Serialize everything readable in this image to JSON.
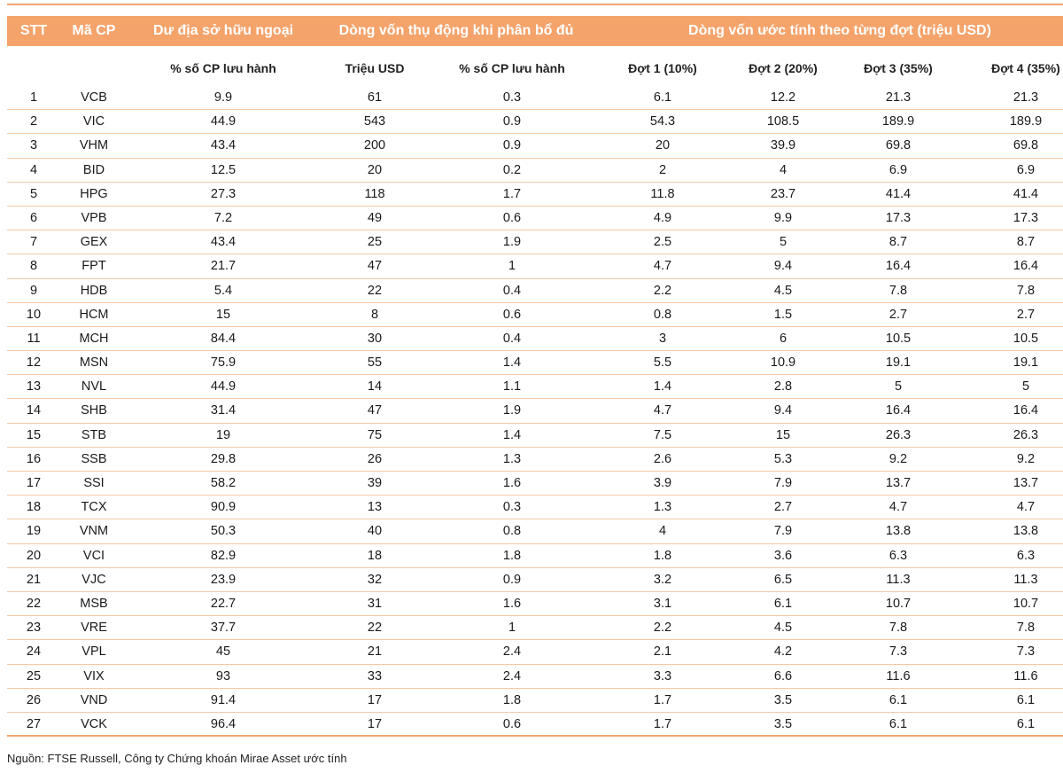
{
  "header": {
    "stt": "STT",
    "ma_cp": "Mã CP",
    "du_dia": "Dư địa sở hữu ngoại",
    "dong_von_thu_dong": "Dòng vốn thụ động khi phân bổ đủ",
    "dong_von_uoc_tinh": "Dòng vốn ước tính theo từng đợt (triệu USD)"
  },
  "subheader": {
    "du_dia_pct": "% số CP lưu hành",
    "trieu_usd": "Triệu USD",
    "pct_luu_hanh": "% số CP lưu hành",
    "dot1": "Đợt 1 (10%)",
    "dot2": "Đợt 2 (20%)",
    "dot3": "Đợt 3 (35%)",
    "dot4": "Đợt 4 (35%)"
  },
  "rows": [
    [
      "1",
      "VCB",
      "9.9",
      "61",
      "0.3",
      "6.1",
      "12.2",
      "21.3",
      "21.3"
    ],
    [
      "2",
      "VIC",
      "44.9",
      "543",
      "0.9",
      "54.3",
      "108.5",
      "189.9",
      "189.9"
    ],
    [
      "3",
      "VHM",
      "43.4",
      "200",
      "0.9",
      "20",
      "39.9",
      "69.8",
      "69.8"
    ],
    [
      "4",
      "BID",
      "12.5",
      "20",
      "0.2",
      "2",
      "4",
      "6.9",
      "6.9"
    ],
    [
      "5",
      "HPG",
      "27.3",
      "118",
      "1.7",
      "11.8",
      "23.7",
      "41.4",
      "41.4"
    ],
    [
      "6",
      "VPB",
      "7.2",
      "49",
      "0.6",
      "4.9",
      "9.9",
      "17.3",
      "17.3"
    ],
    [
      "7",
      "GEX",
      "43.4",
      "25",
      "1.9",
      "2.5",
      "5",
      "8.7",
      "8.7"
    ],
    [
      "8",
      "FPT",
      "21.7",
      "47",
      "1",
      "4.7",
      "9.4",
      "16.4",
      "16.4"
    ],
    [
      "9",
      "HDB",
      "5.4",
      "22",
      "0.4",
      "2.2",
      "4.5",
      "7.8",
      "7.8"
    ],
    [
      "10",
      "HCM",
      "15",
      "8",
      "0.6",
      "0.8",
      "1.5",
      "2.7",
      "2.7"
    ],
    [
      "11",
      "MCH",
      "84.4",
      "30",
      "0.4",
      "3",
      "6",
      "10.5",
      "10.5"
    ],
    [
      "12",
      "MSN",
      "75.9",
      "55",
      "1.4",
      "5.5",
      "10.9",
      "19.1",
      "19.1"
    ],
    [
      "13",
      "NVL",
      "44.9",
      "14",
      "1.1",
      "1.4",
      "2.8",
      "5",
      "5"
    ],
    [
      "14",
      "SHB",
      "31.4",
      "47",
      "1.9",
      "4.7",
      "9.4",
      "16.4",
      "16.4"
    ],
    [
      "15",
      "STB",
      "19",
      "75",
      "1.4",
      "7.5",
      "15",
      "26.3",
      "26.3"
    ],
    [
      "16",
      "SSB",
      "29.8",
      "26",
      "1.3",
      "2.6",
      "5.3",
      "9.2",
      "9.2"
    ],
    [
      "17",
      "SSI",
      "58.2",
      "39",
      "1.6",
      "3.9",
      "7.9",
      "13.7",
      "13.7"
    ],
    [
      "18",
      "TCX",
      "90.9",
      "13",
      "0.3",
      "1.3",
      "2.7",
      "4.7",
      "4.7"
    ],
    [
      "19",
      "VNM",
      "50.3",
      "40",
      "0.8",
      "4",
      "7.9",
      "13.8",
      "13.8"
    ],
    [
      "20",
      "VCI",
      "82.9",
      "18",
      "1.8",
      "1.8",
      "3.6",
      "6.3",
      "6.3"
    ],
    [
      "21",
      "VJC",
      "23.9",
      "32",
      "0.9",
      "3.2",
      "6.5",
      "11.3",
      "11.3"
    ],
    [
      "22",
      "MSB",
      "22.7",
      "31",
      "1.6",
      "3.1",
      "6.1",
      "10.7",
      "10.7"
    ],
    [
      "23",
      "VRE",
      "37.7",
      "22",
      "1",
      "2.2",
      "4.5",
      "7.8",
      "7.8"
    ],
    [
      "24",
      "VPL",
      "45",
      "21",
      "2.4",
      "2.1",
      "4.2",
      "7.3",
      "7.3"
    ],
    [
      "25",
      "VIX",
      "93",
      "33",
      "2.4",
      "3.3",
      "6.6",
      "11.6",
      "11.6"
    ],
    [
      "26",
      "VND",
      "91.4",
      "17",
      "1.8",
      "1.7",
      "3.5",
      "6.1",
      "6.1"
    ],
    [
      "27",
      "VCK",
      "96.4",
      "17",
      "0.6",
      "1.7",
      "3.5",
      "6.1",
      "6.1"
    ]
  ],
  "source": "Nguồn: FTSE Russell, Công ty Chứng khoán Mirae Asset ước tính"
}
